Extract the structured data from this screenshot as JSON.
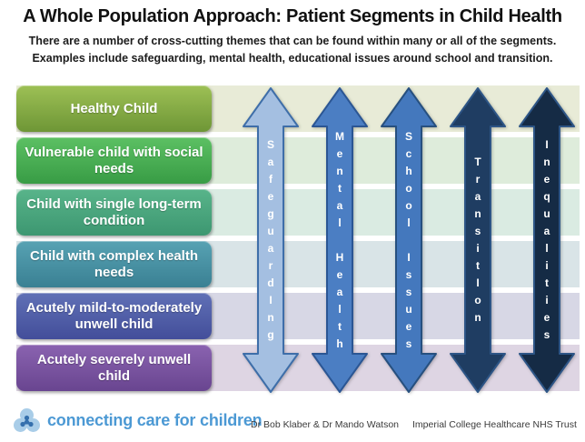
{
  "slide": {
    "title": "A Whole Population Approach: Patient Segments in Child Health",
    "subtitle_line1": "There are a number of cross-cutting themes that can be found within many or all of the segments.",
    "subtitle_line2": "Examples include safeguarding, mental health, educational issues around school and transition."
  },
  "segments": [
    {
      "name": "healthy-child",
      "label": "Healthy Child",
      "color_top": "#9dc055",
      "color_bottom": "#6e9636",
      "band_color": "#e8ebd7"
    },
    {
      "name": "vulnerable-child",
      "label": "Vulnerable child with social needs",
      "color_top": "#5cc063",
      "color_bottom": "#389c45",
      "band_color": "#deecdb"
    },
    {
      "name": "single-long-term",
      "label": "Child with single long-term condition",
      "color_top": "#58b48a",
      "color_bottom": "#3d9771",
      "band_color": "#daebe2"
    },
    {
      "name": "complex-health-needs",
      "label": "Child with complex health needs",
      "color_top": "#57a2b3",
      "color_bottom": "#3a8093",
      "band_color": "#d9e4e7"
    },
    {
      "name": "acutely-mild-moderate",
      "label": "Acutely mild-to-moderately unwell child",
      "color_top": "#6070b6",
      "color_bottom": "#434e9a",
      "band_color": "#d7d7e5"
    },
    {
      "name": "acutely-severe",
      "label": "Acutely severely unwell child",
      "color_top": "#8a63b0",
      "color_bottom": "#694590",
      "band_color": "#ded5e3"
    }
  ],
  "arrows": [
    {
      "name": "safeguarding",
      "label": "SafeguardIng",
      "letters": [
        "S",
        "a",
        "f",
        "e",
        "g",
        "u",
        "a",
        "r",
        "d",
        "I",
        "n",
        "g"
      ],
      "fill": "#a4bfe1",
      "stroke": "#3e6ea9"
    },
    {
      "name": "mental-health",
      "label": "Mental Health",
      "letters": [
        "M",
        "e",
        "n",
        "t",
        "a",
        "l",
        "",
        "H",
        "e",
        "a",
        "l",
        "t",
        "h"
      ],
      "fill": "#4b7ec3",
      "stroke": "#2b5694"
    },
    {
      "name": "school-issues",
      "label": "School Issues",
      "letters": [
        "S",
        "c",
        "h",
        "o",
        "o",
        "l",
        "",
        "I",
        "s",
        "s",
        "u",
        "e",
        "s"
      ],
      "fill": "#4478bd",
      "stroke": "#27507f"
    },
    {
      "name": "transition",
      "label": "TransitIon",
      "letters": [
        "T",
        "r",
        "a",
        "n",
        "s",
        "i",
        "t",
        "I",
        "o",
        "n"
      ],
      "fill": "#1f3d62",
      "stroke": "#2d5586"
    },
    {
      "name": "inequalities",
      "label": "Inequalities",
      "letters": [
        "I",
        "n",
        "e",
        "q",
        "u",
        "a",
        "l",
        "i",
        "t",
        "i",
        "e",
        "s"
      ],
      "fill": "#152b45",
      "stroke": "#2d5586"
    }
  ],
  "footer": {
    "logo_text": "connecting care for children",
    "logo_text_color": "#4c99d4",
    "logo_petal_color": "#a9cde8",
    "logo_core_color": "#3570ad",
    "credits_authors": "Dr Bob Klaber & Dr Mando Watson",
    "credits_org": "Imperial College Healthcare NHS Trust"
  }
}
